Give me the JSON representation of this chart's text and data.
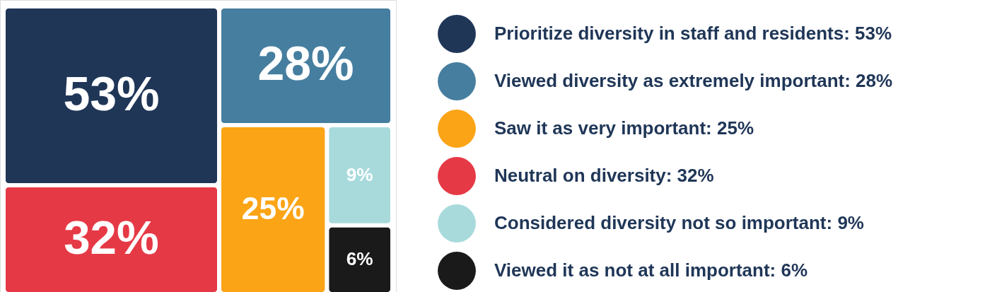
{
  "chart_data": {
    "type": "other",
    "categories": [
      "Prioritize diversity in staff and residents: 53%",
      "Viewed diversity as extremely important: 28%",
      "Saw it as very important: 25%",
      "Neutral on diversity: 32%",
      "Considered diversity not so important: 9%",
      "Viewed it as not at all important: 6%"
    ],
    "values": [
      53,
      28,
      25,
      32,
      9,
      6
    ],
    "value_labels": [
      "53%",
      "28%",
      "25%",
      "32%",
      "9%",
      "6%"
    ],
    "colors": [
      "#1f3657",
      "#467e9f",
      "#fba416",
      "#e63946",
      "#a8dadc",
      "#1a1a1a"
    ]
  }
}
